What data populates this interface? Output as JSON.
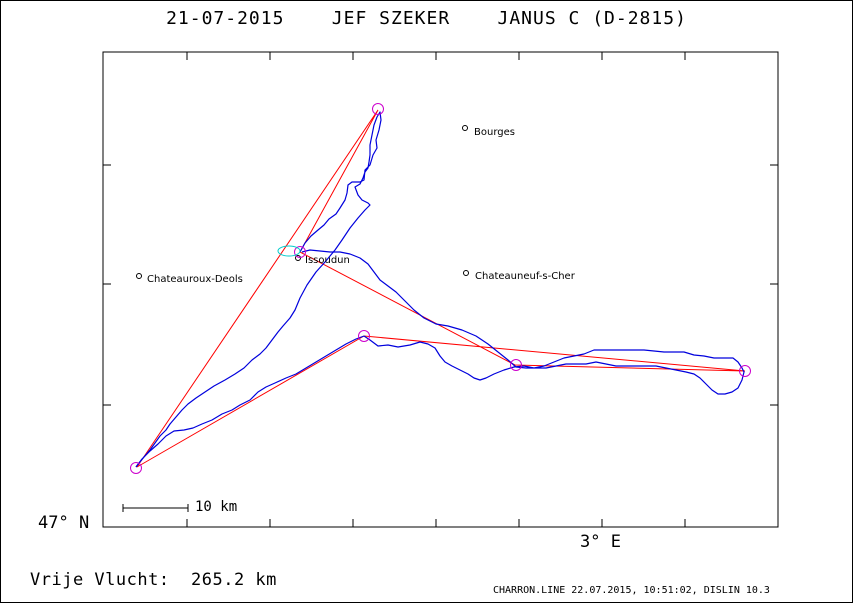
{
  "title": "21-07-2015    JEF SZEKER    JANUS C (D-2815)",
  "axes": {
    "lat_label": "47° N",
    "lon_label": "3° E"
  },
  "scale_bar": {
    "label": "10 km"
  },
  "towns": [
    {
      "name": "Bourges"
    },
    {
      "name": "Issoudun"
    },
    {
      "name": "Chateauroux-Deols"
    },
    {
      "name": "Chateauneuf-s-Cher"
    }
  ],
  "footer": {
    "distance": "Vrije Vlucht:  265.2 km",
    "credit": "CHARRON.LINE 22.07.2015, 10:51:02, DISLIN 10.3"
  },
  "colors": {
    "track": "#0000dd",
    "task_lines": "#ff0000",
    "turnpoint_circles": "#cc00cc",
    "start_circle": "#00cccc"
  }
}
